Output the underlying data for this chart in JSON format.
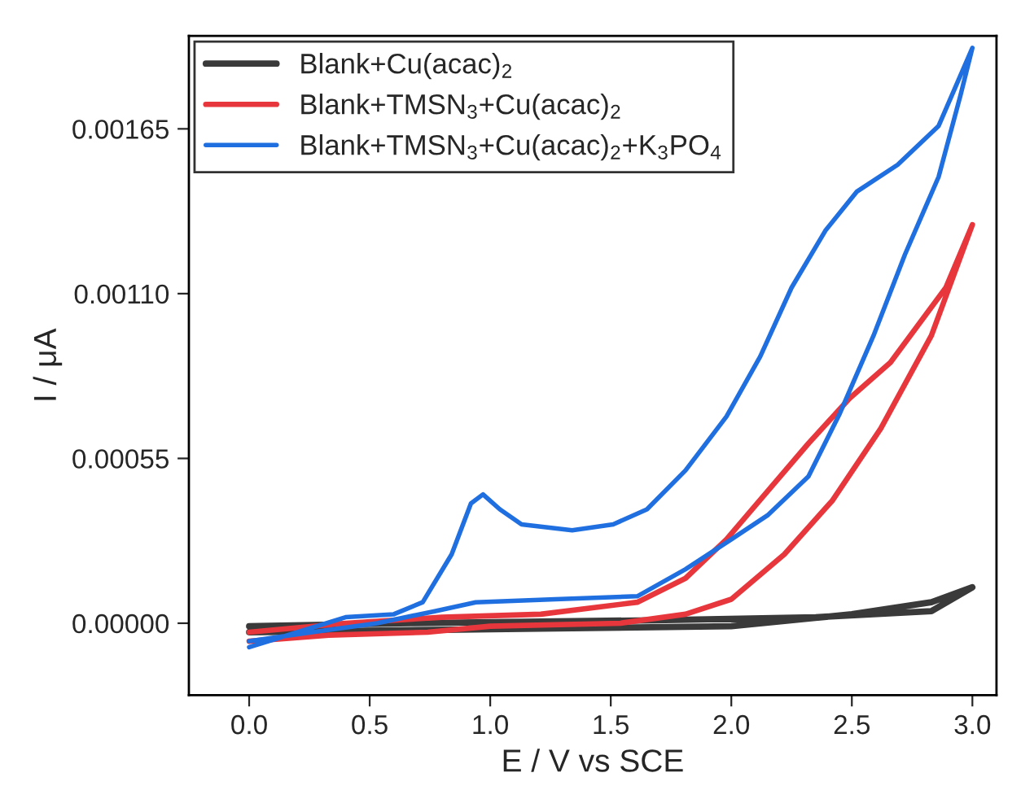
{
  "chart_data": {
    "type": "line",
    "xlabel": "E / V vs SCE",
    "ylabel": "I / μA",
    "xlim": [
      -0.25,
      3.1
    ],
    "ylim": [
      -0.00024,
      0.00196
    ],
    "xticks": [
      {
        "value": 0,
        "label": "0.0"
      },
      {
        "value": 0.5,
        "label": "0.5"
      },
      {
        "value": 1,
        "label": "1.0"
      },
      {
        "value": 1.5,
        "label": "1.5"
      },
      {
        "value": 2,
        "label": "2.0"
      },
      {
        "value": 2.5,
        "label": "2.5"
      },
      {
        "value": 3,
        "label": "3.0"
      }
    ],
    "yticks": [
      {
        "value": 0,
        "label": "0.00000"
      },
      {
        "value": 0.00055,
        "label": "0.00055"
      },
      {
        "value": 0.0011,
        "label": "0.00110"
      },
      {
        "value": 0.00165,
        "label": "0.00165"
      }
    ],
    "grid": false,
    "legend": "top left",
    "marker": "none",
    "line_style": "solid",
    "series": [
      {
        "name": "Blank+Cu(acac)$_{2}$",
        "color": "#3a3a3a",
        "x": [
          0,
          1.0,
          2.0,
          2.5,
          2.83,
          3.0,
          2.83,
          2.35,
          1.68,
          0.67,
          0
        ],
        "values": [
          -3e-05,
          -2e-05,
          -1e-05,
          3e-05,
          7e-05,
          0.00012,
          4e-05,
          2e-05,
          1e-05,
          0.0,
          -1e-05
        ]
      },
      {
        "name": "Blank+TMSN$_{3}$+Cu(acac)$_{2}$",
        "color": "#e8373c",
        "x": [
          0,
          0.33,
          0.74,
          1.0,
          1.54,
          1.81,
          2.0,
          2.22,
          2.42,
          2.62,
          2.83,
          3.0,
          2.89,
          2.66,
          2.49,
          2.32,
          2.15,
          1.98,
          1.81,
          1.61,
          1.21,
          0.8,
          0.4,
          0
        ],
        "values": [
          -6e-05,
          -4e-05,
          -3e-05,
          -1e-05,
          0.0,
          3e-05,
          8e-05,
          0.00023,
          0.00041,
          0.00065,
          0.00096,
          0.00133,
          0.00112,
          0.00087,
          0.00075,
          0.0006,
          0.00044,
          0.00028,
          0.00015,
          7e-05,
          3e-05,
          2e-05,
          0.0,
          -3e-05
        ]
      },
      {
        "name": "Blank+TMSN$_{3}$+Cu(acac)$_{2}$+K$_{3}$PO$_{4}$",
        "color": "#1f6fe0",
        "x": [
          0,
          0.2,
          0.4,
          0.6,
          0.72,
          0.84,
          0.92,
          0.97,
          1.04,
          1.13,
          1.34,
          1.51,
          1.65,
          1.81,
          1.98,
          2.12,
          2.25,
          2.39,
          2.52,
          2.69,
          2.86,
          3.0,
          2.95,
          2.86,
          2.72,
          2.59,
          2.45,
          2.32,
          2.15,
          2.0,
          1.81,
          1.61,
          1.27,
          0.94,
          0.77,
          0.53,
          0.26,
          0
        ],
        "values": [
          -8e-05,
          -3e-05,
          2e-05,
          3e-05,
          7e-05,
          0.00023,
          0.0004,
          0.00043,
          0.00038,
          0.00033,
          0.00031,
          0.00033,
          0.00038,
          0.00051,
          0.00069,
          0.00089,
          0.00112,
          0.00131,
          0.00144,
          0.00153,
          0.00166,
          0.00192,
          0.00176,
          0.00149,
          0.00123,
          0.00096,
          0.0007,
          0.00049,
          0.00036,
          0.00028,
          0.00018,
          9e-05,
          8e-05,
          7e-05,
          4e-05,
          0.0,
          -3e-05,
          -6e-05
        ]
      }
    ]
  }
}
